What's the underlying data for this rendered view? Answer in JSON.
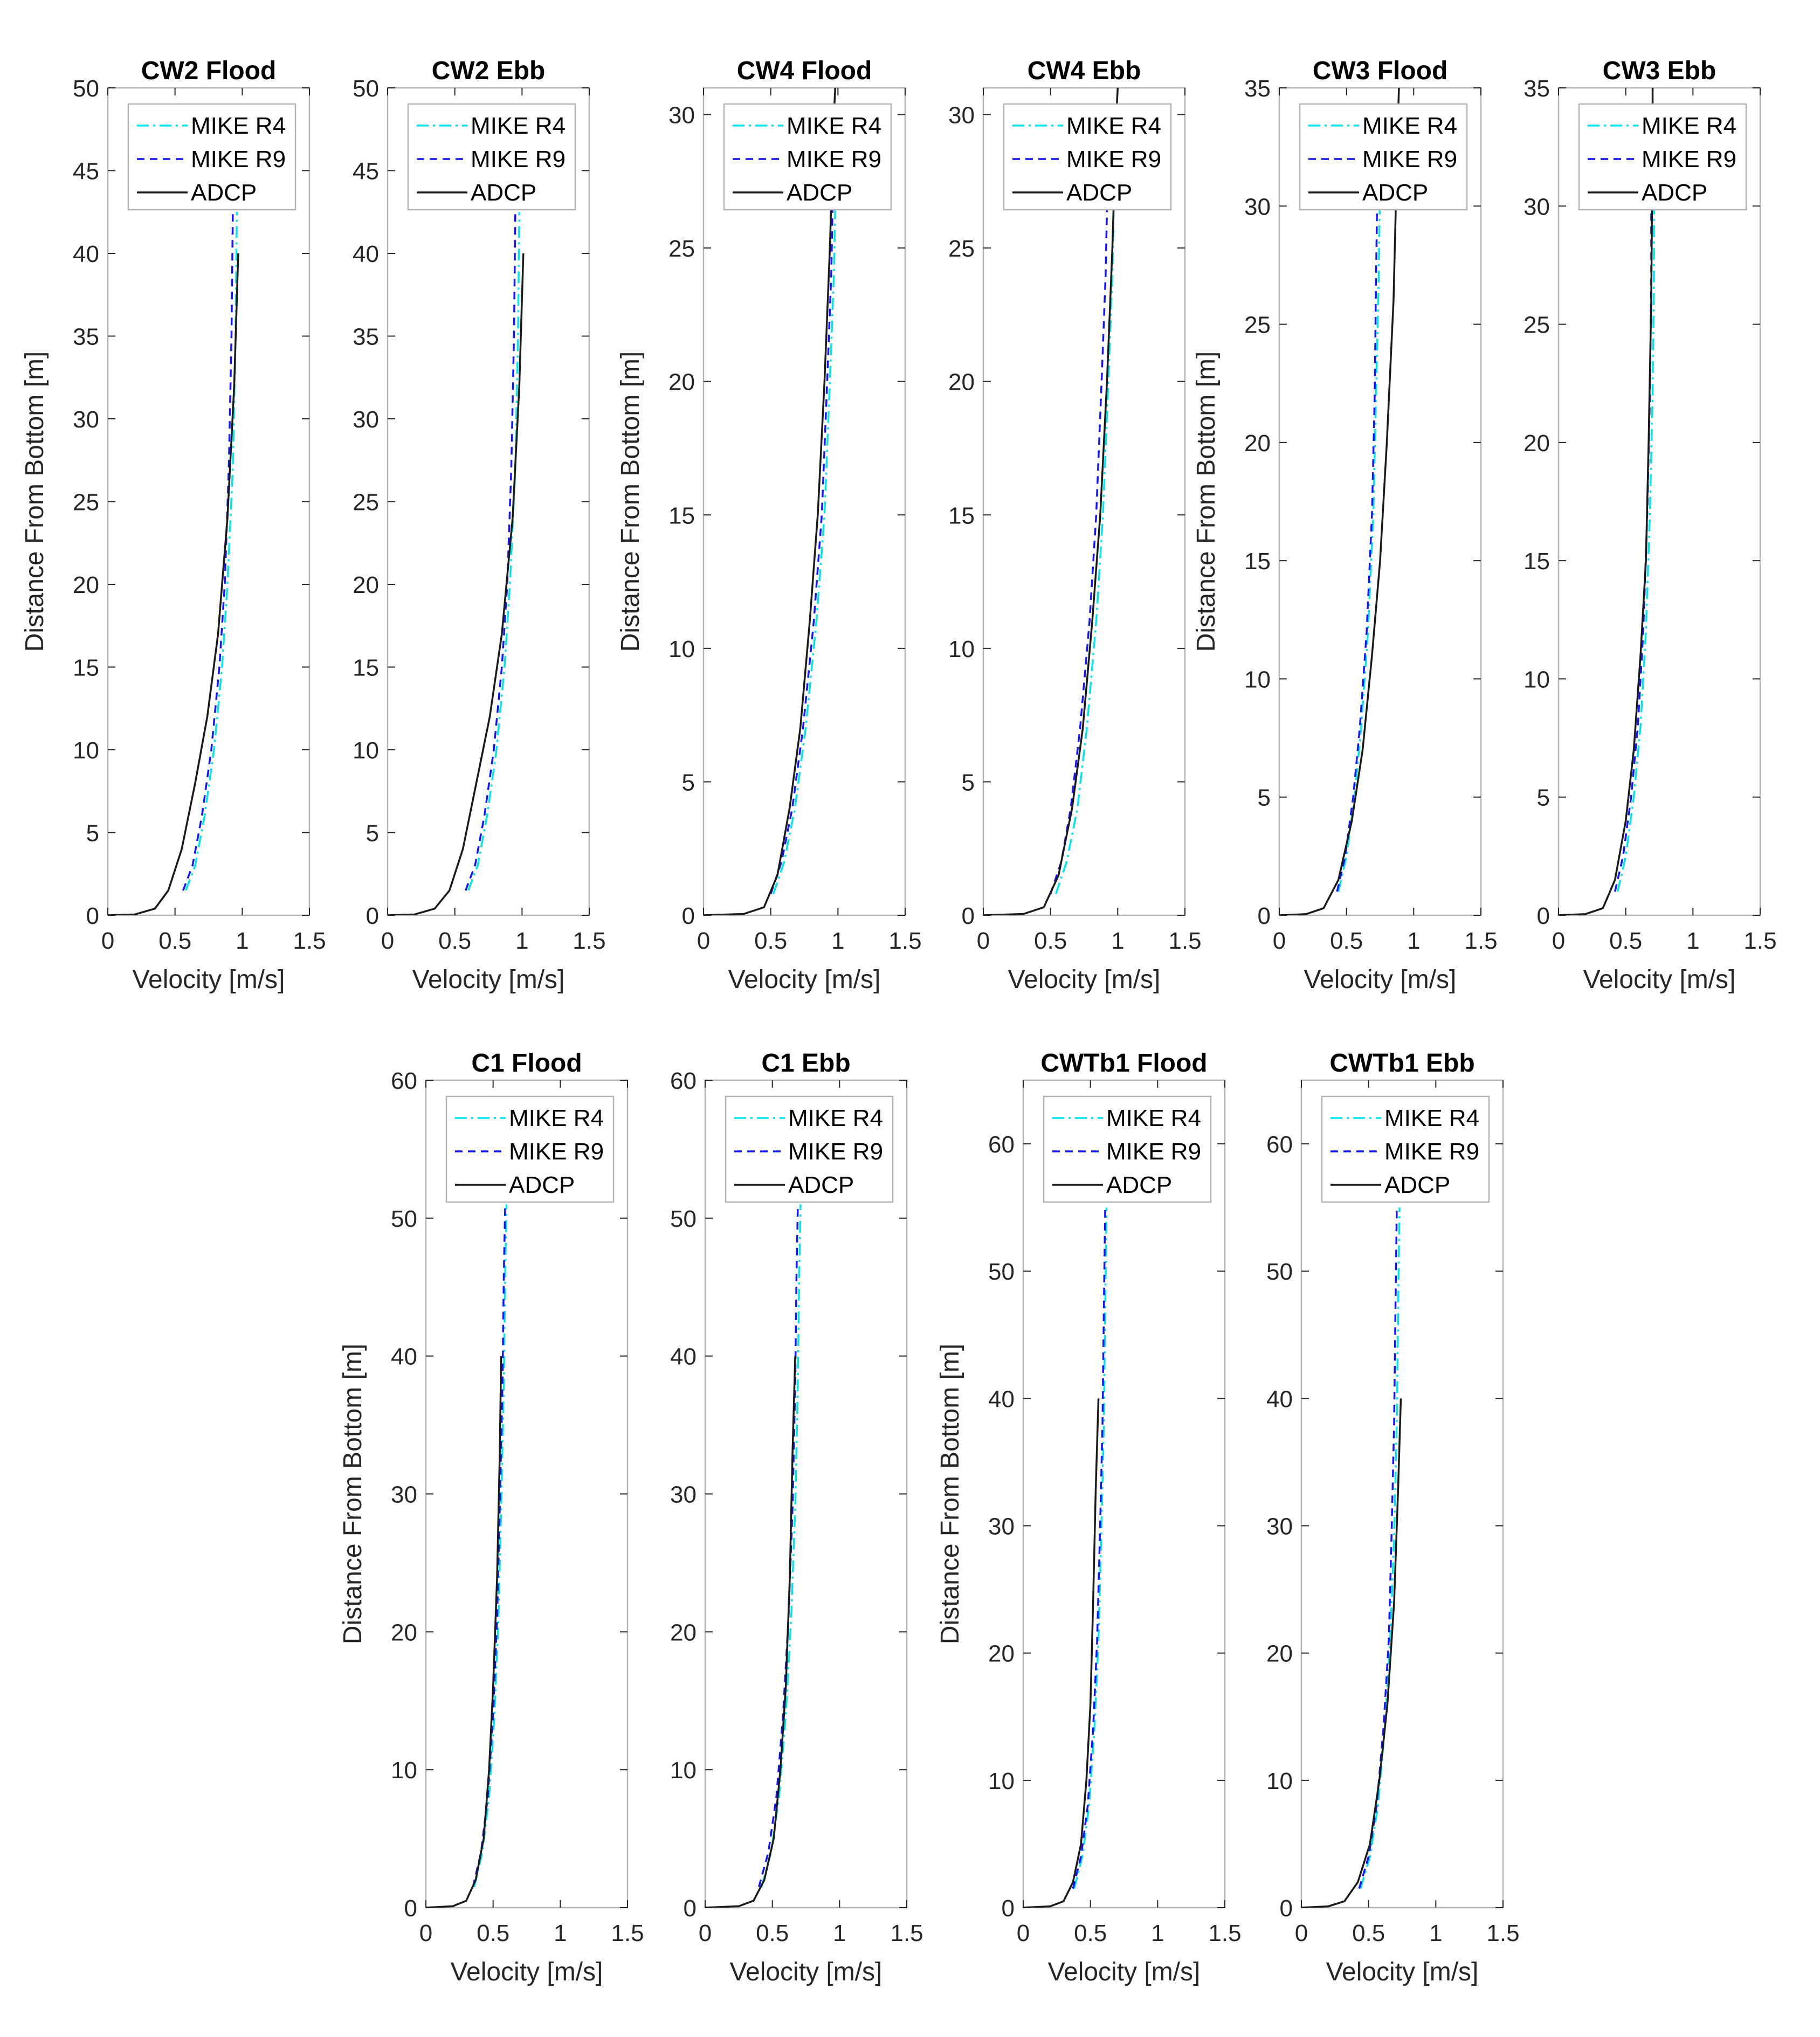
{
  "chart_data": [
    {
      "type": "line",
      "title": "CW2 Flood",
      "xlabel": "Velocity [m/s]",
      "ylabel": "Distance From Bottom [m]",
      "xlim": [
        0,
        1.5
      ],
      "ylim": [
        0,
        50
      ],
      "xticks": [
        "0",
        "0.5",
        "1",
        "1.5"
      ],
      "yticks": [
        "0",
        "5",
        "10",
        "15",
        "20",
        "25",
        "30",
        "35",
        "40",
        "45",
        "50"
      ],
      "legend": [
        "MIKE R4",
        "MIKE R9",
        "ADCP"
      ],
      "series": [
        {
          "name": "MIKE R4",
          "x": [
            0.58,
            0.65,
            0.72,
            0.79,
            0.85,
            0.89,
            0.93,
            0.95,
            0.96
          ],
          "y": [
            1.5,
            3,
            6,
            10,
            15,
            20,
            27,
            35,
            42.5
          ]
        },
        {
          "name": "MIKE R9",
          "x": [
            0.56,
            0.63,
            0.7,
            0.77,
            0.83,
            0.87,
            0.9,
            0.92,
            0.93
          ],
          "y": [
            1.5,
            3,
            6,
            10,
            15,
            20,
            27,
            35,
            42.5
          ]
        },
        {
          "name": "ADCP",
          "x": [
            0,
            0.2,
            0.35,
            0.45,
            0.55,
            0.65,
            0.74,
            0.82,
            0.89,
            0.94,
            0.97
          ],
          "y": [
            0,
            0.05,
            0.4,
            1.5,
            4,
            8,
            12,
            17,
            24,
            32,
            40
          ]
        }
      ]
    },
    {
      "type": "line",
      "title": "CW2 Ebb",
      "xlabel": "Velocity [m/s]",
      "ylabel": "",
      "xlim": [
        0,
        1.5
      ],
      "ylim": [
        0,
        50
      ],
      "xticks": [
        "0",
        "0.5",
        "1",
        "1.5"
      ],
      "yticks": [
        "0",
        "5",
        "10",
        "15",
        "20",
        "25",
        "30",
        "35",
        "40",
        "45",
        "50"
      ],
      "legend": [
        "MIKE R4",
        "MIKE R9",
        "ADCP"
      ],
      "series": [
        {
          "name": "MIKE R4",
          "x": [
            0.6,
            0.67,
            0.74,
            0.81,
            0.87,
            0.91,
            0.95,
            0.97,
            0.98
          ],
          "y": [
            1.5,
            3,
            6,
            10,
            15,
            20,
            27,
            35,
            42.5
          ]
        },
        {
          "name": "MIKE R9",
          "x": [
            0.58,
            0.65,
            0.72,
            0.79,
            0.85,
            0.89,
            0.92,
            0.94,
            0.95
          ],
          "y": [
            1.5,
            3,
            6,
            10,
            15,
            20,
            27,
            35,
            42.5
          ]
        },
        {
          "name": "ADCP",
          "x": [
            0,
            0.2,
            0.35,
            0.46,
            0.56,
            0.66,
            0.76,
            0.85,
            0.93,
            0.98,
            1.01
          ],
          "y": [
            0,
            0.05,
            0.4,
            1.5,
            4,
            8,
            12,
            17,
            24,
            32,
            40
          ]
        }
      ]
    },
    {
      "type": "line",
      "title": "CW4 Flood",
      "xlabel": "Velocity [m/s]",
      "ylabel": "Distance From Bottom [m]",
      "xlim": [
        0,
        1.5
      ],
      "ylim": [
        0,
        31
      ],
      "xticks": [
        "0",
        "0.5",
        "1",
        "1.5"
      ],
      "yticks": [
        "0",
        "5",
        "10",
        "15",
        "20",
        "25",
        "30"
      ],
      "legend": [
        "MIKE R4",
        "MIKE R9",
        "ADCP"
      ],
      "series": [
        {
          "name": "MIKE R4",
          "x": [
            0.52,
            0.6,
            0.68,
            0.76,
            0.84,
            0.9,
            0.94,
            0.97,
            0.98
          ],
          "y": [
            0.8,
            2,
            4,
            7,
            11,
            15,
            20,
            24,
            26.5
          ]
        },
        {
          "name": "MIKE R9",
          "x": [
            0.5,
            0.58,
            0.66,
            0.74,
            0.82,
            0.88,
            0.92,
            0.95,
            0.96
          ],
          "y": [
            0.8,
            2,
            4,
            7,
            11,
            15,
            20,
            24,
            26.5
          ]
        },
        {
          "name": "ADCP",
          "x": [
            0,
            0.3,
            0.45,
            0.55,
            0.64,
            0.72,
            0.79,
            0.85,
            0.9,
            0.94,
            0.97,
            0.98
          ],
          "y": [
            0,
            0.05,
            0.3,
            1.5,
            4,
            7,
            11,
            15,
            20,
            25,
            30,
            31
          ]
        }
      ]
    },
    {
      "type": "line",
      "title": "CW4 Ebb",
      "xlabel": "Velocity [m/s]",
      "ylabel": "",
      "xlim": [
        0,
        1.5
      ],
      "ylim": [
        0,
        31
      ],
      "xticks": [
        "0",
        "0.5",
        "1",
        "1.5"
      ],
      "yticks": [
        "0",
        "5",
        "10",
        "15",
        "20",
        "25",
        "30"
      ],
      "legend": [
        "MIKE R4",
        "MIKE R9",
        "ADCP"
      ],
      "series": [
        {
          "name": "MIKE R4",
          "x": [
            0.54,
            0.62,
            0.7,
            0.77,
            0.84,
            0.89,
            0.93,
            0.96,
            0.97
          ],
          "y": [
            0.8,
            2,
            4,
            7,
            11,
            15,
            20,
            24,
            26.5
          ]
        },
        {
          "name": "MIKE R9",
          "x": [
            0.5,
            0.58,
            0.65,
            0.72,
            0.79,
            0.84,
            0.88,
            0.91,
            0.92
          ],
          "y": [
            0.8,
            2,
            4,
            7,
            11,
            15,
            20,
            24,
            26.5
          ]
        },
        {
          "name": "ADCP",
          "x": [
            0,
            0.3,
            0.45,
            0.56,
            0.66,
            0.74,
            0.81,
            0.87,
            0.92,
            0.96,
            0.99,
            1.0
          ],
          "y": [
            0,
            0.05,
            0.3,
            1.5,
            4,
            7,
            11,
            15,
            20,
            25,
            30,
            31
          ]
        }
      ]
    },
    {
      "type": "line",
      "title": "CW3 Flood",
      "xlabel": "Velocity [m/s]",
      "ylabel": "Distance From Bottom [m]",
      "xlim": [
        0,
        1.5
      ],
      "ylim": [
        0,
        35
      ],
      "xticks": [
        "0",
        "0.5",
        "1",
        "1.5"
      ],
      "yticks": [
        "0",
        "5",
        "10",
        "15",
        "20",
        "25",
        "30",
        "35"
      ],
      "legend": [
        "MIKE R4",
        "MIKE R9",
        "ADCP"
      ],
      "series": [
        {
          "name": "MIKE R4",
          "x": [
            0.44,
            0.5,
            0.56,
            0.61,
            0.66,
            0.7,
            0.72,
            0.74,
            0.75
          ],
          "y": [
            1,
            2.5,
            5,
            8,
            12,
            17,
            22,
            27,
            31
          ]
        },
        {
          "name": "MIKE R9",
          "x": [
            0.43,
            0.49,
            0.55,
            0.6,
            0.65,
            0.69,
            0.71,
            0.72,
            0.73
          ],
          "y": [
            1,
            2.5,
            5,
            8,
            12,
            17,
            22,
            27,
            31
          ]
        },
        {
          "name": "ADCP",
          "x": [
            0,
            0.2,
            0.33,
            0.44,
            0.54,
            0.62,
            0.69,
            0.75,
            0.8,
            0.85,
            0.88,
            0.89
          ],
          "y": [
            0,
            0.05,
            0.3,
            1.5,
            4,
            7,
            11,
            15,
            20,
            26,
            33,
            35
          ]
        }
      ]
    },
    {
      "type": "line",
      "title": "CW3 Ebb",
      "xlabel": "Velocity [m/s]",
      "ylabel": "",
      "xlim": [
        0,
        1.5
      ],
      "ylim": [
        0,
        35
      ],
      "xticks": [
        "0",
        "0.5",
        "1",
        "1.5"
      ],
      "yticks": [
        "0",
        "5",
        "10",
        "15",
        "20",
        "25",
        "30",
        "35"
      ],
      "legend": [
        "MIKE R4",
        "MIKE R9",
        "ADCP"
      ],
      "series": [
        {
          "name": "MIKE R4",
          "x": [
            0.44,
            0.5,
            0.56,
            0.61,
            0.65,
            0.68,
            0.7,
            0.71,
            0.71
          ],
          "y": [
            1,
            2.5,
            5,
            8,
            12,
            17,
            22,
            27,
            31
          ]
        },
        {
          "name": "MIKE R9",
          "x": [
            0.42,
            0.48,
            0.54,
            0.59,
            0.63,
            0.66,
            0.68,
            0.69,
            0.69
          ],
          "y": [
            1,
            2.5,
            5,
            8,
            12,
            17,
            22,
            27,
            31
          ]
        },
        {
          "name": "ADCP",
          "x": [
            0,
            0.2,
            0.33,
            0.42,
            0.5,
            0.56,
            0.61,
            0.65,
            0.67,
            0.69,
            0.7,
            0.7
          ],
          "y": [
            0,
            0.05,
            0.3,
            1.5,
            4,
            7,
            11,
            15,
            20,
            26,
            33,
            35
          ]
        }
      ]
    },
    {
      "type": "line",
      "title": "C1 Flood",
      "xlabel": "Velocity [m/s]",
      "ylabel": "Distance From Bottom [m]",
      "xlim": [
        0,
        1.5
      ],
      "ylim": [
        0,
        60
      ],
      "xticks": [
        "0",
        "0.5",
        "1",
        "1.5"
      ],
      "yticks": [
        "0",
        "10",
        "20",
        "30",
        "40",
        "50",
        "60"
      ],
      "legend": [
        "MIKE R4",
        "MIKE R9",
        "ADCP"
      ],
      "series": [
        {
          "name": "MIKE R4",
          "x": [
            0.36,
            0.42,
            0.47,
            0.51,
            0.54,
            0.56,
            0.58,
            0.59,
            0.6
          ],
          "y": [
            1.5,
            4,
            8,
            14,
            21,
            29,
            38,
            46,
            51
          ]
        },
        {
          "name": "MIKE R9",
          "x": [
            0.35,
            0.41,
            0.46,
            0.5,
            0.53,
            0.55,
            0.57,
            0.58,
            0.59
          ],
          "y": [
            1.5,
            4,
            8,
            14,
            21,
            29,
            38,
            46,
            51
          ]
        },
        {
          "name": "ADCP",
          "x": [
            0,
            0.2,
            0.3,
            0.37,
            0.43,
            0.47,
            0.5,
            0.53,
            0.55,
            0.56
          ],
          "y": [
            0,
            0.1,
            0.5,
            2,
            5,
            10,
            16,
            24,
            33,
            40
          ]
        }
      ]
    },
    {
      "type": "line",
      "title": "C1 Ebb",
      "xlabel": "Velocity [m/s]",
      "ylabel": "",
      "xlim": [
        0,
        1.5
      ],
      "ylim": [
        0,
        60
      ],
      "xticks": [
        "0",
        "0.5",
        "1",
        "1.5"
      ],
      "yticks": [
        "0",
        "10",
        "20",
        "30",
        "40",
        "50",
        "60"
      ],
      "legend": [
        "MIKE R4",
        "MIKE R9",
        "ADCP"
      ],
      "series": [
        {
          "name": "MIKE R4",
          "x": [
            0.42,
            0.49,
            0.55,
            0.6,
            0.64,
            0.67,
            0.69,
            0.7,
            0.71
          ],
          "y": [
            1.5,
            4,
            8,
            14,
            21,
            29,
            38,
            46,
            51
          ]
        },
        {
          "name": "MIKE R9",
          "x": [
            0.4,
            0.47,
            0.53,
            0.58,
            0.62,
            0.65,
            0.67,
            0.68,
            0.69
          ],
          "y": [
            1.5,
            4,
            8,
            14,
            21,
            29,
            38,
            46,
            51
          ]
        },
        {
          "name": "ADCP",
          "x": [
            0,
            0.25,
            0.36,
            0.44,
            0.51,
            0.56,
            0.6,
            0.63,
            0.65,
            0.67
          ],
          "y": [
            0,
            0.1,
            0.5,
            2,
            5,
            10,
            16,
            24,
            33,
            40
          ]
        }
      ]
    },
    {
      "type": "line",
      "title": "CWTb1 Flood",
      "xlabel": "Velocity [m/s]",
      "ylabel": "Distance From Bottom [m]",
      "xlim": [
        0,
        1.5
      ],
      "ylim": [
        0,
        65
      ],
      "xticks": [
        "0",
        "0.5",
        "1",
        "1.5"
      ],
      "yticks": [
        "0",
        "10",
        "20",
        "30",
        "40",
        "50",
        "60"
      ],
      "legend": [
        "MIKE R4",
        "MIKE R9",
        "ADCP"
      ],
      "series": [
        {
          "name": "MIKE R4",
          "x": [
            0.38,
            0.44,
            0.49,
            0.53,
            0.56,
            0.58,
            0.6,
            0.61,
            0.62
          ],
          "y": [
            1.5,
            4,
            8,
            14,
            21,
            29,
            38,
            47,
            55
          ]
        },
        {
          "name": "MIKE R9",
          "x": [
            0.37,
            0.43,
            0.48,
            0.52,
            0.55,
            0.57,
            0.59,
            0.6,
            0.61
          ],
          "y": [
            1.5,
            4,
            8,
            14,
            21,
            29,
            38,
            47,
            55
          ]
        },
        {
          "name": "ADCP",
          "x": [
            0,
            0.2,
            0.3,
            0.37,
            0.43,
            0.47,
            0.5,
            0.52,
            0.54,
            0.56
          ],
          "y": [
            0,
            0.1,
            0.5,
            2,
            5,
            10,
            16,
            24,
            33,
            40
          ]
        }
      ]
    },
    {
      "type": "line",
      "title": "CWTb1 Ebb",
      "xlabel": "Velocity [m/s]",
      "ylabel": "",
      "xlim": [
        0,
        1.5
      ],
      "ylim": [
        0,
        65
      ],
      "xticks": [
        "0",
        "0.5",
        "1",
        "1.5"
      ],
      "yticks": [
        "0",
        "10",
        "20",
        "30",
        "40",
        "50",
        "60"
      ],
      "legend": [
        "MIKE R4",
        "MIKE R9",
        "ADCP"
      ],
      "series": [
        {
          "name": "MIKE R4",
          "x": [
            0.44,
            0.51,
            0.57,
            0.62,
            0.66,
            0.69,
            0.71,
            0.72,
            0.73
          ],
          "y": [
            1.5,
            4,
            8,
            14,
            21,
            29,
            38,
            47,
            55
          ]
        },
        {
          "name": "MIKE R9",
          "x": [
            0.43,
            0.5,
            0.56,
            0.61,
            0.65,
            0.67,
            0.69,
            0.7,
            0.71
          ],
          "y": [
            1.5,
            4,
            8,
            14,
            21,
            29,
            38,
            47,
            55
          ]
        },
        {
          "name": "ADCP",
          "x": [
            0,
            0.2,
            0.32,
            0.42,
            0.51,
            0.58,
            0.64,
            0.69,
            0.72,
            0.74
          ],
          "y": [
            0,
            0.1,
            0.5,
            2,
            5,
            10,
            16,
            24,
            33,
            40
          ]
        }
      ]
    }
  ],
  "colors": {
    "MIKE R4": "#00E5EE",
    "MIKE R9": "#1414FF",
    "ADCP": "#1A1A1A",
    "axis": "#262626",
    "box": "#b3b3b3"
  }
}
